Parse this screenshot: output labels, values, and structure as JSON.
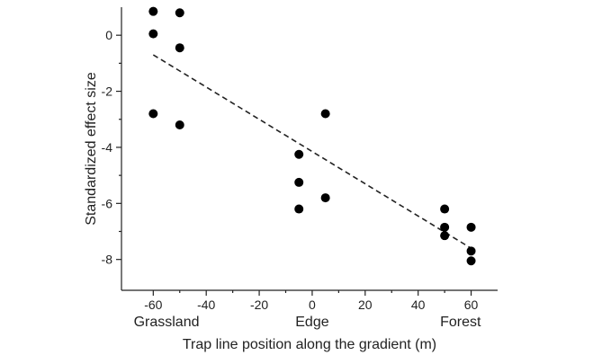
{
  "chart_data": {
    "type": "scatter",
    "xlabel": "Trap line position along the gradient (m)",
    "ylabel": "Standardized effect size",
    "xlim": [
      -72,
      70
    ],
    "ylim": [
      -9.1,
      1.0
    ],
    "x_ticks": [
      -60,
      -40,
      -20,
      0,
      20,
      40,
      60
    ],
    "y_ticks": [
      0,
      -2,
      -4,
      -6,
      -8
    ],
    "region_labels": [
      {
        "x": -55,
        "text": "Grassland"
      },
      {
        "x": 0,
        "text": "Edge"
      },
      {
        "x": 56,
        "text": "Forest"
      }
    ],
    "points": [
      {
        "x": -60,
        "y": 0.85
      },
      {
        "x": -60,
        "y": 0.05
      },
      {
        "x": -60,
        "y": -2.8
      },
      {
        "x": -50,
        "y": 0.8
      },
      {
        "x": -50,
        "y": -0.45
      },
      {
        "x": -50,
        "y": -3.2
      },
      {
        "x": -5,
        "y": -4.25
      },
      {
        "x": -5,
        "y": -5.25
      },
      {
        "x": -5,
        "y": -6.2
      },
      {
        "x": 5,
        "y": -2.8
      },
      {
        "x": 5,
        "y": -5.8
      },
      {
        "x": 50,
        "y": -6.2
      },
      {
        "x": 50,
        "y": -6.85
      },
      {
        "x": 50,
        "y": -7.15
      },
      {
        "x": 60,
        "y": -6.85
      },
      {
        "x": 60,
        "y": -7.7
      },
      {
        "x": 60,
        "y": -8.05
      }
    ],
    "trendline": {
      "x": [
        -60,
        60
      ],
      "y": [
        -0.7,
        -7.6
      ]
    },
    "grid": false,
    "legend": "none"
  }
}
